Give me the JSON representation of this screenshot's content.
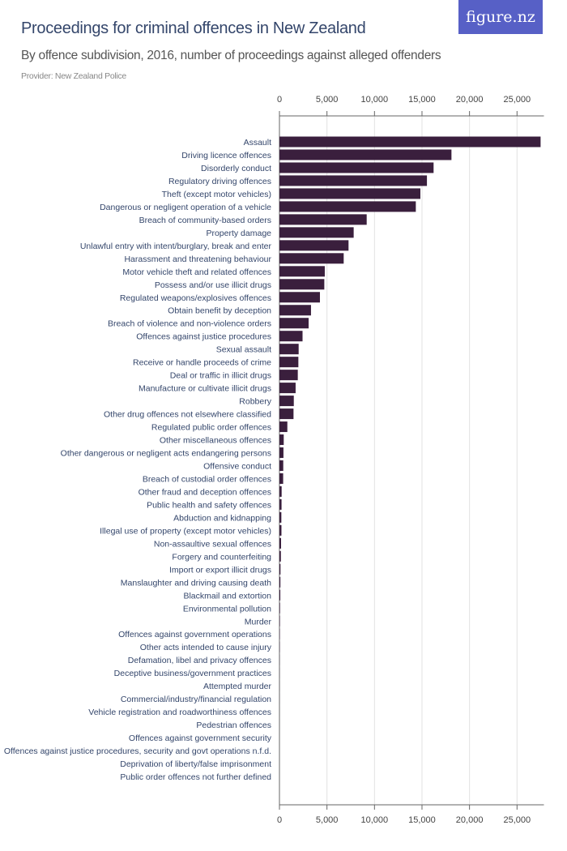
{
  "header": {
    "title": "Proceedings for criminal offences in New Zealand",
    "subtitle": "By offence subdivision, 2016, number of proceedings against alleged offenders",
    "provider": "Provider: New Zealand Police",
    "logo": "figure.nz",
    "logo_color": "#5760c6"
  },
  "chart_data": {
    "type": "bar",
    "orientation": "horizontal",
    "title": "Proceedings for criminal offences in New Zealand",
    "subtitle": "By offence subdivision, 2016, number of proceedings against alleged offenders",
    "xlim": [
      0,
      28000
    ],
    "ticks": [
      0,
      5000,
      10000,
      15000,
      20000,
      25000
    ],
    "tick_labels": [
      "0",
      "5,000",
      "10,000",
      "15,000",
      "20,000",
      "25,000"
    ],
    "axis_position": "top and bottom",
    "grid": true,
    "bar_color": "#3a1f3d",
    "categories": [
      "Assault",
      "Driving licence offences",
      "Disorderly conduct",
      "Regulatory driving offences",
      "Theft (except motor vehicles)",
      "Dangerous or negligent operation of a vehicle",
      "Breach of community-based orders",
      "Property damage",
      "Unlawful entry with intent/burglary, break and enter",
      "Harassment and threatening behaviour",
      "Motor vehicle theft and related offences",
      "Possess and/or use illicit drugs",
      "Regulated weapons/explosives offences",
      "Obtain benefit by deception",
      "Breach of violence and non-violence orders",
      "Offences against justice procedures",
      "Sexual assault",
      "Receive or handle proceeds of crime",
      "Deal or traffic in illicit drugs",
      "Manufacture or cultivate illicit drugs",
      "Robbery",
      "Other drug offences not elsewhere classified",
      "Regulated public order offences",
      "Other miscellaneous offences",
      "Other dangerous or negligent acts endangering persons",
      "Offensive conduct",
      "Breach of custodial order offences",
      "Other fraud and deception offences",
      "Public health and safety offences",
      "Abduction and kidnapping",
      "Illegal use of property (except motor vehicles)",
      "Non-assaultive sexual offences",
      "Forgery and counterfeiting",
      "Import or export illicit drugs",
      "Manslaughter and driving causing death",
      "Blackmail and extortion",
      "Environmental pollution",
      "Murder",
      "Offences against government operations",
      "Other acts intended to cause injury",
      "Defamation, libel and privacy offences",
      "Deceptive business/government practices",
      "Attempted murder",
      "Commercial/industry/financial regulation",
      "Vehicle registration and roadworthiness offences",
      "Pedestrian offences",
      "Offences against government security",
      "Offences against justice procedures, security and govt operations n.f.d.",
      "Deprivation of liberty/false imprisonment",
      "Public order offences not further defined"
    ],
    "values": [
      27480,
      18100,
      16220,
      15520,
      14830,
      14350,
      9180,
      7810,
      7270,
      6760,
      4770,
      4720,
      4260,
      3320,
      3070,
      2430,
      2020,
      1990,
      1930,
      1700,
      1510,
      1480,
      830,
      450,
      420,
      400,
      390,
      230,
      220,
      200,
      210,
      170,
      150,
      110,
      100,
      90,
      60,
      50,
      40,
      30,
      15,
      10,
      8,
      5,
      3,
      2,
      1,
      0,
      0,
      0
    ]
  }
}
